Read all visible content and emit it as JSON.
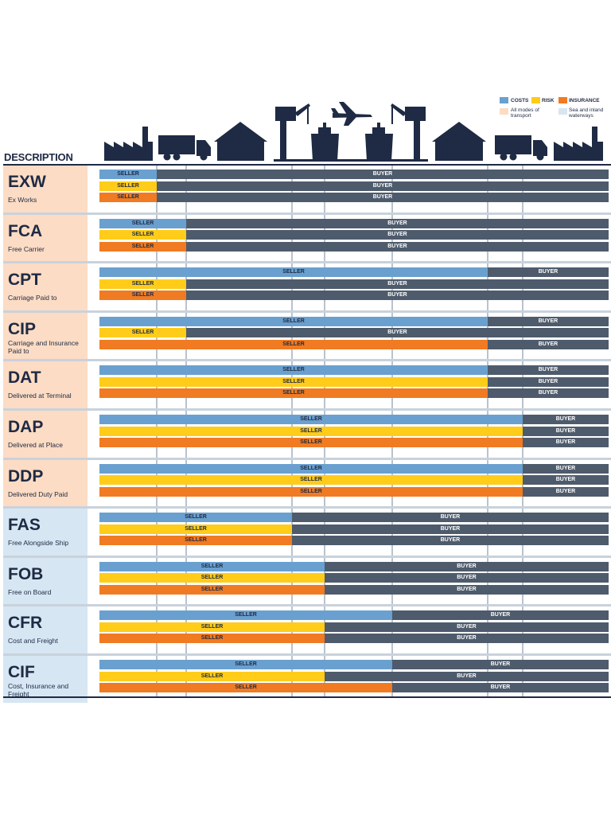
{
  "legend": {
    "costs": "COSTS",
    "risk": "RISK",
    "insurance": "INSURANCE",
    "all_modes": "All modes of transport",
    "sea": "Sea and inland waterways"
  },
  "header": {
    "description": "DESCRIPTION"
  },
  "colors": {
    "costs": "#6aa0cf",
    "risk": "#ffcc1a",
    "insurance": "#f07b22",
    "buyer": "#4e5b6c",
    "all_modes_bg": "#fcdcc4",
    "sea_bg": "#d6e6f3",
    "navy": "#1f2a44"
  },
  "icons": [
    "factory-icon",
    "truck-icon",
    "warehouse-icon",
    "port-crane-icon",
    "ship-icon",
    "airplane-icon",
    "ship-icon",
    "port-crane-icon",
    "warehouse-icon",
    "truck-icon",
    "factory-icon"
  ],
  "labels": {
    "seller": "SELLER",
    "buyer": "BUYER"
  },
  "terms": [
    {
      "code": "EXW",
      "name": "Ex Works",
      "group": "all_modes",
      "transfer": {
        "costs": 1,
        "risk": 1,
        "insurance": 1
      }
    },
    {
      "code": "FCA",
      "name": "Free Carrier",
      "group": "all_modes",
      "transfer": {
        "costs": 2,
        "risk": 2,
        "insurance": 2
      }
    },
    {
      "code": "CPT",
      "name": "Carriage Paid to",
      "group": "all_modes",
      "transfer": {
        "costs": 6,
        "risk": 2,
        "insurance": 2
      }
    },
    {
      "code": "CIP",
      "name": "Carriage and Insurance Paid to",
      "group": "all_modes",
      "transfer": {
        "costs": 6,
        "risk": 2,
        "insurance": 6
      }
    },
    {
      "code": "DAT",
      "name": "Delivered at Terminal",
      "group": "all_modes",
      "transfer": {
        "costs": 6,
        "risk": 6,
        "insurance": 6
      }
    },
    {
      "code": "DAP",
      "name": "Delivered at Place",
      "group": "all_modes",
      "transfer": {
        "costs": 7,
        "risk": 7,
        "insurance": 7
      }
    },
    {
      "code": "DDP",
      "name": "Delivered Duty Paid",
      "group": "all_modes",
      "transfer": {
        "costs": 7,
        "risk": 7,
        "insurance": 7
      }
    },
    {
      "code": "FAS",
      "name": "Free Alongside Ship",
      "group": "sea",
      "transfer": {
        "costs": 3,
        "risk": 3,
        "insurance": 3
      }
    },
    {
      "code": "FOB",
      "name": "Free on Board",
      "group": "sea",
      "transfer": {
        "costs": 4,
        "risk": 4,
        "insurance": 4
      }
    },
    {
      "code": "CFR",
      "name": "Cost and Freight",
      "group": "sea",
      "transfer": {
        "costs": 5,
        "risk": 4,
        "insurance": 4
      }
    },
    {
      "code": "CIF",
      "name": "Cost, Insurance and Freight",
      "group": "sea",
      "transfer": {
        "costs": 5,
        "risk": 4,
        "insurance": 5
      }
    }
  ]
}
